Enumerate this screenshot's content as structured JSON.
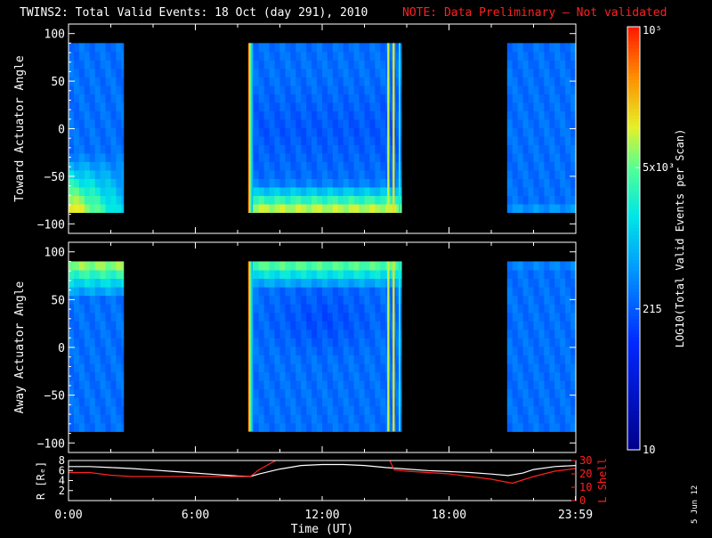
{
  "header": {
    "title": "TWINS2: Total Valid Events: 18 Oct (day 291), 2010",
    "note": "NOTE: Data Preliminary — Not validated",
    "title_color": "#ffffff",
    "note_color": "#ff2020"
  },
  "footer_stamp": "5 Jun 12",
  "chart_data": [
    {
      "type": "heatmap",
      "ylabel": "Toward Actuator Angle",
      "ylim": [
        -110,
        110
      ],
      "yticks": [
        "100",
        "50",
        "0",
        "−50",
        "−100"
      ],
      "ytick_values": [
        100,
        50,
        0,
        -50,
        -100
      ],
      "x_range_hours": [
        0,
        24
      ],
      "data_windows_hours": [
        [
          0.0,
          2.6
        ],
        [
          8.5,
          15.75
        ],
        [
          20.75,
          24.0
        ]
      ],
      "angle_range": [
        -88,
        90
      ]
    },
    {
      "type": "heatmap",
      "ylabel": "Away Actuator Angle",
      "ylim": [
        -110,
        110
      ],
      "yticks": [
        "100",
        "50",
        "0",
        "−50",
        "−100"
      ],
      "ytick_values": [
        100,
        50,
        0,
        -50,
        -100
      ],
      "x_range_hours": [
        0,
        24
      ],
      "data_windows_hours": [
        [
          0.0,
          2.6
        ],
        [
          8.5,
          15.75
        ],
        [
          20.75,
          24.0
        ]
      ],
      "angle_range": [
        -88,
        90
      ]
    },
    {
      "type": "line",
      "ylabel_left": "R [Rₑ]",
      "ylabel_right": "L Shell",
      "ylim_left": [
        0,
        8
      ],
      "ylim_right": [
        0,
        30
      ],
      "yticks_left": [
        "8",
        "6",
        "4",
        "2"
      ],
      "yticks_right": [
        "30",
        "20",
        "10",
        "0"
      ],
      "xlabel": "Time (UT)",
      "xticks": [
        "0:00",
        "6:00",
        "12:00",
        "18:00",
        "23:59"
      ],
      "xtick_values": [
        0,
        6,
        12,
        18,
        23.98
      ],
      "series": [
        {
          "color": "#ffffff",
          "x": [
            0,
            1,
            2,
            3,
            4,
            5,
            6,
            7,
            8,
            8.6,
            9,
            10,
            11,
            12,
            13,
            14,
            15,
            16,
            17,
            18,
            19,
            20,
            20.8,
            21.5,
            22,
            23,
            24
          ],
          "y": [
            6.8,
            6.8,
            6.6,
            6.4,
            6.1,
            5.8,
            5.5,
            5.2,
            4.9,
            4.8,
            5.3,
            6.3,
            7.0,
            7.2,
            7.2,
            7.0,
            6.6,
            6.3,
            6.0,
            5.8,
            5.6,
            5.3,
            5.0,
            5.5,
            6.2,
            6.8,
            7.0
          ]
        },
        {
          "color": "#ff2020",
          "x": [
            0,
            1,
            2,
            3,
            4,
            5,
            6,
            7,
            8,
            8.6,
            9,
            9.8
          ],
          "y": [
            21,
            21,
            19,
            18,
            18,
            18,
            18,
            18,
            18,
            18,
            23,
            30
          ]
        },
        {
          "color": "#ff2020",
          "x": [
            15.2,
            15.4,
            16,
            17,
            18,
            19,
            20,
            21,
            22,
            23,
            24
          ],
          "y": [
            30,
            23,
            22,
            21,
            20,
            18,
            16,
            13,
            18,
            22,
            24
          ]
        }
      ]
    }
  ],
  "colorbar": {
    "label": "LOG10(Total Valid Events per Scan)",
    "ticks": [
      "10",
      "215",
      "5x10³",
      "10⁵"
    ],
    "tick_fracs": [
      0.0,
      0.333,
      0.667,
      1.0
    ]
  }
}
